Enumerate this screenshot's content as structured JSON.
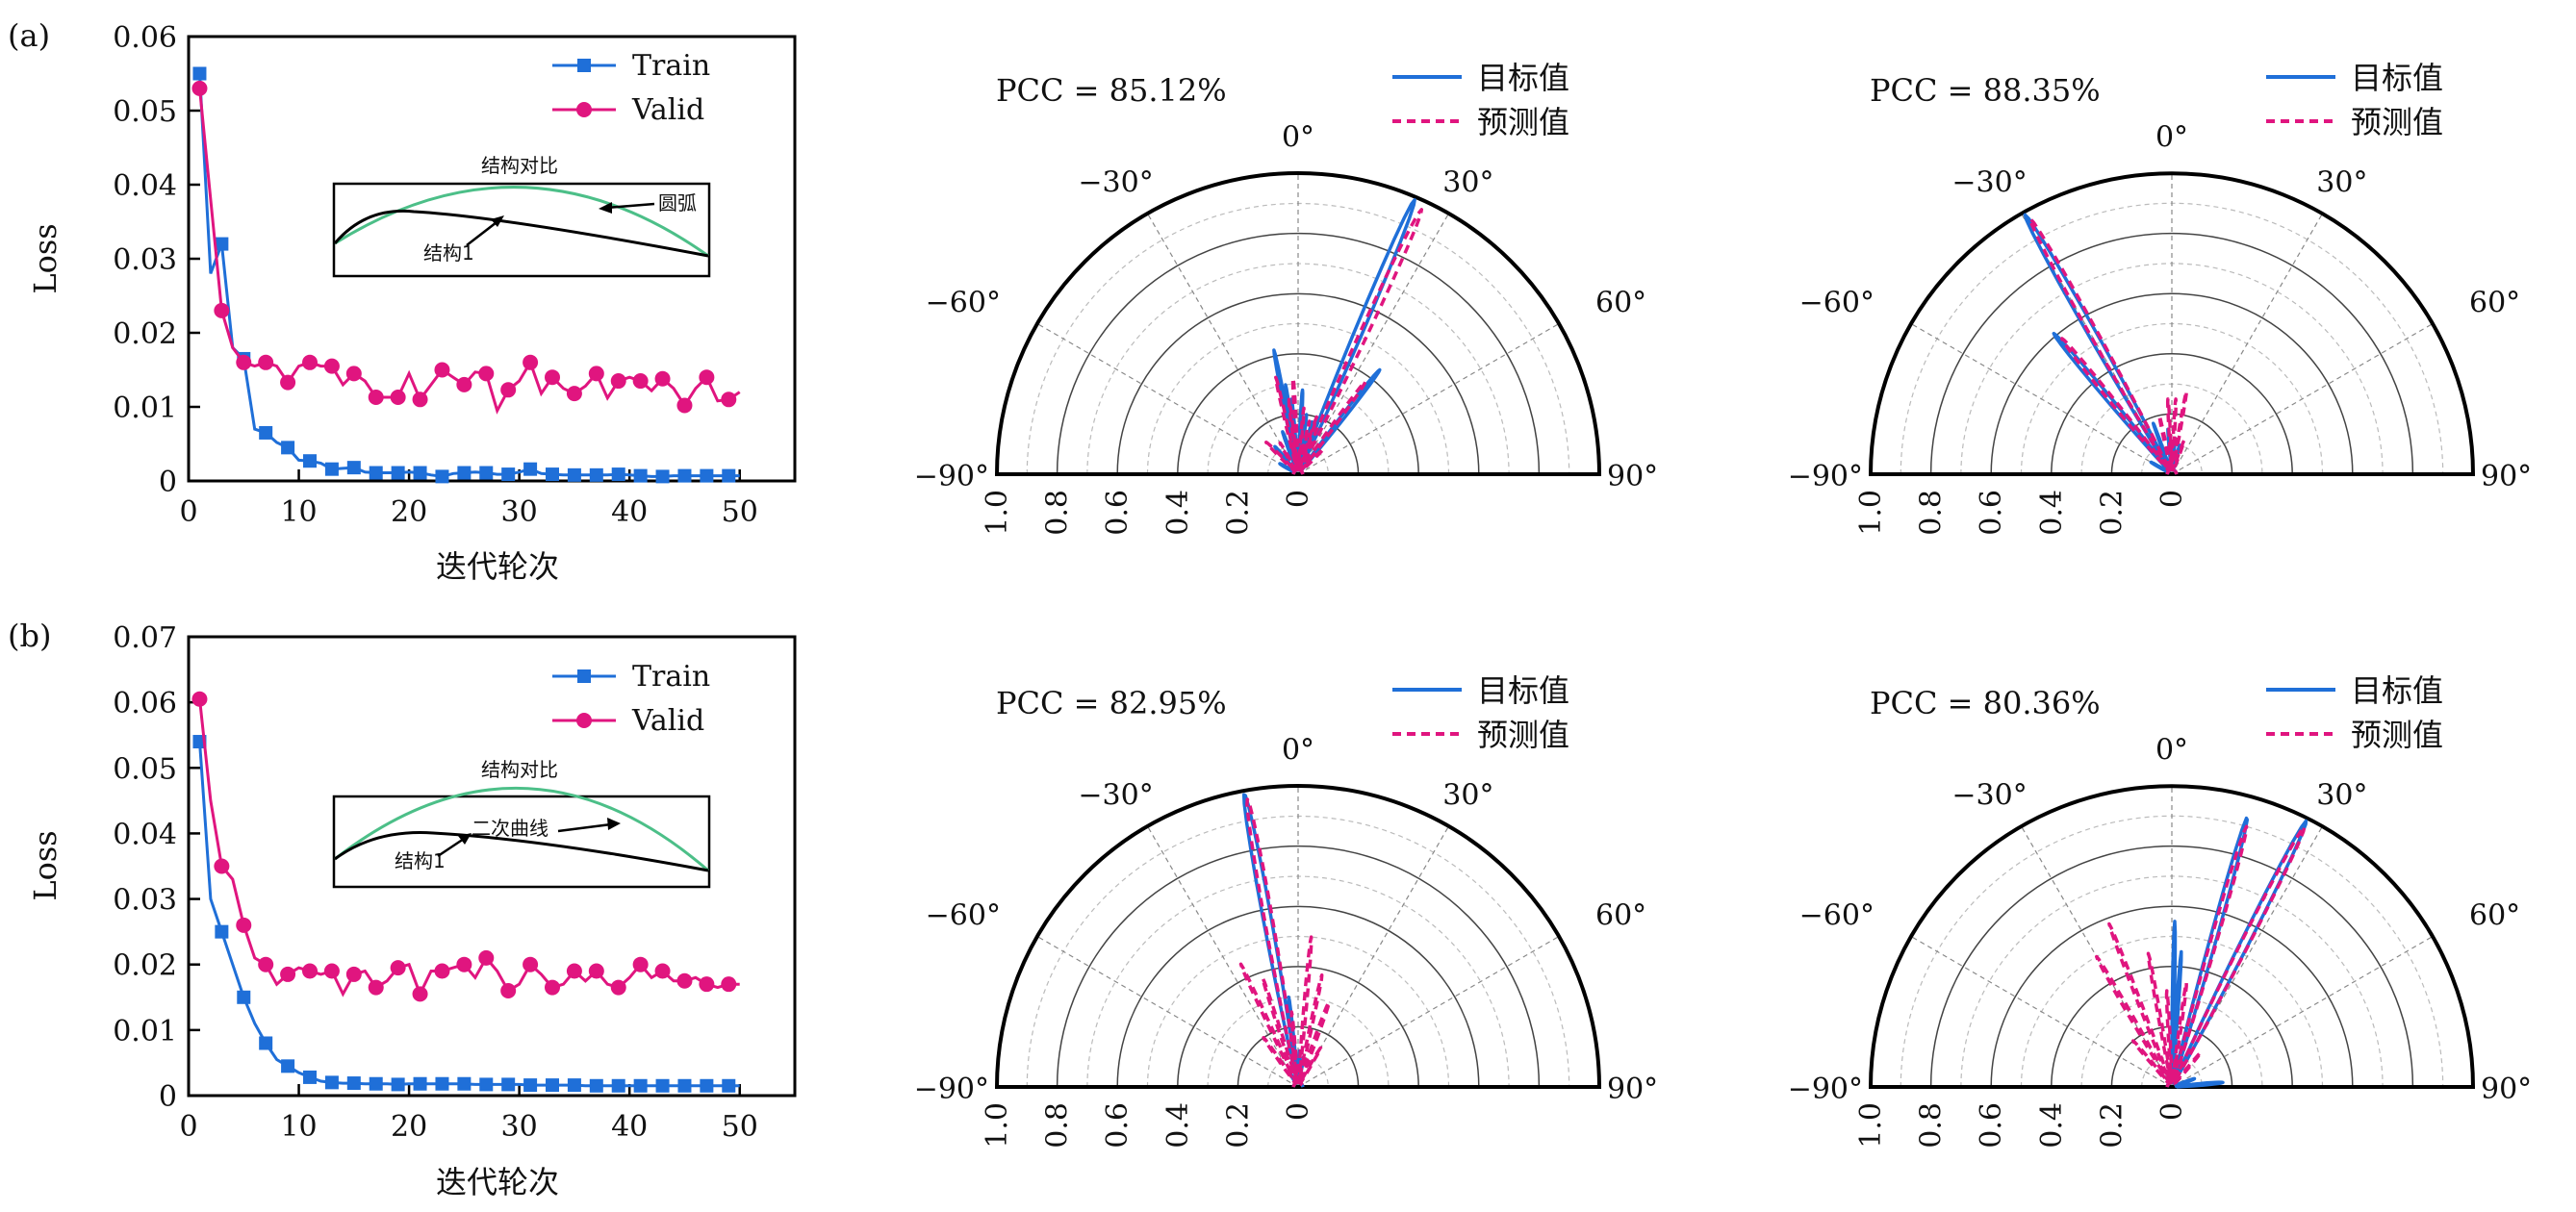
{
  "colors": {
    "train": "#1f6fd8",
    "valid": "#e0157f",
    "target": "#1f6fd8",
    "predicted": "#e0157f",
    "arc": "#4cbf88",
    "structure": "#000000"
  },
  "chart_data": [
    {
      "type": "line",
      "panel_label": "(a)",
      "xlabel": "迭代轮次",
      "ylabel": "Loss",
      "xlim": [
        0,
        55
      ],
      "ylim": [
        0,
        0.06
      ],
      "xticks": [
        0,
        10,
        20,
        30,
        40,
        50
      ],
      "yticks": [
        0,
        0.01,
        0.02,
        0.03,
        0.04,
        0.05,
        0.06
      ],
      "ytick_labels": [
        "0",
        "0.01",
        "0.02",
        "0.03",
        "0.04",
        "0.05",
        "0.06"
      ],
      "legend_position": "top-right",
      "inset": {
        "title": "结构对比",
        "label_1": "结构1",
        "label_2": "圆弧"
      },
      "series": [
        {
          "name": "Train",
          "marker": "square",
          "values": [
            0.055,
            0.028,
            0.032,
            0.018,
            0.0165,
            0.007,
            0.0065,
            0.0052,
            0.0045,
            0.0028,
            0.0027,
            0.0024,
            0.0016,
            0.0017,
            0.0018,
            0.0012,
            0.0011,
            0.0011,
            0.0011,
            0.0012,
            0.0011,
            0.0008,
            0.0006,
            0.001,
            0.0011,
            0.0012,
            0.0011,
            0.0009,
            0.0009,
            0.0012,
            0.0016,
            0.001,
            0.0009,
            0.0008,
            0.0008,
            0.0008,
            0.0008,
            0.0008,
            0.0009,
            0.0008,
            0.0007,
            0.0006,
            0.0006,
            0.0007,
            0.0007,
            0.0007,
            0.0007,
            0.0007,
            0.0007,
            0.0007
          ]
        },
        {
          "name": "Valid",
          "marker": "circle",
          "values": [
            0.053,
            0.038,
            0.023,
            0.018,
            0.016,
            0.0155,
            0.016,
            0.0155,
            0.0133,
            0.0155,
            0.016,
            0.0155,
            0.0155,
            0.013,
            0.0145,
            0.0135,
            0.0113,
            0.0113,
            0.0113,
            0.0145,
            0.011,
            0.013,
            0.015,
            0.014,
            0.013,
            0.0147,
            0.0145,
            0.0095,
            0.0123,
            0.0135,
            0.016,
            0.0118,
            0.014,
            0.0125,
            0.0118,
            0.0128,
            0.0145,
            0.0112,
            0.0135,
            0.014,
            0.0135,
            0.0122,
            0.0138,
            0.0125,
            0.0102,
            0.0125,
            0.014,
            0.0108,
            0.011,
            0.012
          ]
        }
      ]
    },
    {
      "type": "line",
      "panel_label": "(b)",
      "xlabel": "迭代轮次",
      "ylabel": "Loss",
      "xlim": [
        0,
        55
      ],
      "ylim": [
        0,
        0.07
      ],
      "xticks": [
        0,
        10,
        20,
        30,
        40,
        50
      ],
      "yticks": [
        0,
        0.01,
        0.02,
        0.03,
        0.04,
        0.05,
        0.06,
        0.07
      ],
      "ytick_labels": [
        "0",
        "0.01",
        "0.02",
        "0.03",
        "0.04",
        "0.05",
        "0.06",
        "0.07"
      ],
      "legend_position": "top-right",
      "inset": {
        "title": "结构对比",
        "label_1": "结构1",
        "label_2": "二次曲线"
      },
      "series": [
        {
          "name": "Train",
          "marker": "square",
          "values": [
            0.054,
            0.03,
            0.025,
            0.02,
            0.015,
            0.011,
            0.008,
            0.0055,
            0.0045,
            0.0035,
            0.0028,
            0.0022,
            0.002,
            0.0019,
            0.0019,
            0.0018,
            0.0018,
            0.0018,
            0.0017,
            0.0018,
            0.0018,
            0.0018,
            0.0018,
            0.0018,
            0.0018,
            0.0017,
            0.0017,
            0.0017,
            0.0017,
            0.0017,
            0.0016,
            0.0016,
            0.0016,
            0.0016,
            0.0016,
            0.0015,
            0.0015,
            0.0015,
            0.0015,
            0.0015,
            0.0015,
            0.0015,
            0.0015,
            0.0015,
            0.0015,
            0.0015,
            0.0015,
            0.0015,
            0.0015,
            0.0015
          ]
        },
        {
          "name": "Valid",
          "marker": "circle",
          "values": [
            0.0605,
            0.045,
            0.035,
            0.033,
            0.026,
            0.021,
            0.02,
            0.017,
            0.0185,
            0.0195,
            0.019,
            0.0185,
            0.019,
            0.0155,
            0.0185,
            0.019,
            0.0165,
            0.0175,
            0.0195,
            0.02,
            0.0155,
            0.019,
            0.019,
            0.0195,
            0.02,
            0.018,
            0.021,
            0.019,
            0.016,
            0.017,
            0.02,
            0.0185,
            0.0165,
            0.017,
            0.019,
            0.0175,
            0.019,
            0.017,
            0.0165,
            0.018,
            0.02,
            0.018,
            0.019,
            0.0175,
            0.0175,
            0.018,
            0.017,
            0.0165,
            0.017,
            0.017
          ]
        }
      ]
    },
    {
      "type": "polar",
      "pcc": "PCC = 85.12%",
      "angle_labels": [
        "−90°",
        "−60°",
        "−30°",
        "0°",
        "30°",
        "60°",
        "90°"
      ],
      "angles": [
        -90,
        -60,
        -30,
        0,
        30,
        60,
        90
      ],
      "radial_labels": [
        "1.0",
        "0.8",
        "0.6",
        "0.4",
        "0.2",
        "0"
      ],
      "rlim": [
        0,
        1
      ],
      "series": [
        {
          "name": "目标值",
          "style": "solid",
          "lobes_angle_mag_width": [
            [
              23,
              0.99,
              3
            ],
            [
              38,
              0.44,
              3
            ],
            [
              -11,
              0.42,
              2
            ],
            [
              -8,
              0.3,
              2
            ],
            [
              -5,
              0.25,
              2
            ],
            [
              3,
              0.28,
              2
            ],
            [
              8,
              0.2,
              2
            ],
            [
              -20,
              0.15,
              3
            ],
            [
              15,
              0.18,
              2
            ],
            [
              -40,
              0.12,
              4
            ],
            [
              -60,
              0.07,
              5
            ]
          ]
        },
        {
          "name": "预测值",
          "style": "dashed",
          "lobes_angle_mag_width": [
            [
              25,
              0.97,
              3
            ],
            [
              36,
              0.38,
              3
            ],
            [
              -13,
              0.33,
              2
            ],
            [
              -3,
              0.32,
              2
            ],
            [
              -7,
              0.25,
              2
            ],
            [
              5,
              0.22,
              2
            ],
            [
              12,
              0.18,
              2
            ],
            [
              18,
              0.2,
              2
            ],
            [
              -30,
              0.12,
              3
            ],
            [
              -45,
              0.15,
              4
            ],
            [
              45,
              0.12,
              3
            ]
          ]
        }
      ]
    },
    {
      "type": "polar",
      "pcc": "PCC = 88.35%",
      "angle_labels": [
        "−90°",
        "−60°",
        "−30°",
        "0°",
        "30°",
        "60°",
        "90°"
      ],
      "angles": [
        -90,
        -60,
        -30,
        0,
        30,
        60,
        90
      ],
      "radial_labels": [
        "1.0",
        "0.8",
        "0.6",
        "0.4",
        "0.2",
        "0"
      ],
      "rlim": [
        0,
        1
      ],
      "series": [
        {
          "name": "目标值",
          "style": "solid",
          "lobes_angle_mag_width": [
            [
              -29.5,
              0.99,
              3
            ],
            [
              -40,
              0.61,
              3
            ],
            [
              -20,
              0.18,
              2
            ],
            [
              -5,
              0.15,
              2
            ],
            [
              5,
              0.12,
              2
            ],
            [
              15,
              0.1,
              3
            ],
            [
              -60,
              0.08,
              4
            ]
          ]
        },
        {
          "name": "预测值",
          "style": "dashed",
          "lobes_angle_mag_width": [
            [
              -29,
              0.97,
              3
            ],
            [
              -39,
              0.58,
              3
            ],
            [
              -3,
              0.25,
              2
            ],
            [
              3,
              0.25,
              2
            ],
            [
              10,
              0.28,
              2
            ],
            [
              -12,
              0.2,
              2
            ],
            [
              20,
              0.12,
              3
            ]
          ]
        }
      ]
    },
    {
      "type": "polar",
      "pcc": "PCC = 82.95%",
      "angle_labels": [
        "−90°",
        "−60°",
        "−30°",
        "0°",
        "30°",
        "60°",
        "90°"
      ],
      "angles": [
        -90,
        -60,
        -30,
        0,
        30,
        60,
        90
      ],
      "radial_labels": [
        "1.0",
        "0.8",
        "0.6",
        "0.4",
        "0.2",
        "0"
      ],
      "rlim": [
        0,
        1
      ],
      "series": [
        {
          "name": "目标值",
          "style": "solid",
          "lobes_angle_mag_width": [
            [
              -10.4,
              0.99,
              3
            ],
            [
              -6,
              0.3,
              2
            ],
            [
              2,
              0.12,
              2
            ],
            [
              10,
              0.1,
              3
            ],
            [
              -30,
              0.06,
              4
            ]
          ]
        },
        {
          "name": "预测值",
          "style": "dashed",
          "lobes_angle_mag_width": [
            [
              -10,
              0.97,
              3
            ],
            [
              -25,
              0.45,
              2
            ],
            [
              -18,
              0.38,
              2
            ],
            [
              5,
              0.5,
              2
            ],
            [
              12,
              0.38,
              2
            ],
            [
              20,
              0.3,
              3
            ],
            [
              -35,
              0.2,
              3
            ],
            [
              -5,
              0.25,
              2
            ],
            [
              30,
              0.15,
              3
            ]
          ]
        }
      ]
    },
    {
      "type": "polar",
      "pcc": "PCC = 80.36%",
      "angle_labels": [
        "−90°",
        "−60°",
        "−30°",
        "0°",
        "30°",
        "60°",
        "90°"
      ],
      "angles": [
        -90,
        -60,
        -30,
        0,
        30,
        60,
        90
      ],
      "radial_labels": [
        "1.0",
        "0.8",
        "0.6",
        "0.4",
        "0.2",
        "0"
      ],
      "rlim": [
        0,
        1
      ],
      "series": [
        {
          "name": "目标值",
          "style": "solid",
          "lobes_angle_mag_width": [
            [
              15.6,
              0.93,
              2.5
            ],
            [
              26.8,
              0.99,
              3
            ],
            [
              1,
              0.55,
              1.5
            ],
            [
              4,
              0.45,
              1.5
            ],
            [
              85,
              0.17,
              4
            ],
            [
              70,
              0.08,
              5
            ]
          ]
        },
        {
          "name": "预测值",
          "style": "dashed",
          "lobes_angle_mag_width": [
            [
              16,
              0.9,
              2.5
            ],
            [
              27,
              0.97,
              3
            ],
            [
              -30,
              0.5,
              2.5
            ],
            [
              -21,
              0.58,
              2
            ],
            [
              -10,
              0.45,
              2
            ],
            [
              -3,
              0.32,
              2
            ],
            [
              8,
              0.35,
              2
            ],
            [
              -40,
              0.2,
              3
            ],
            [
              40,
              0.15,
              3
            ]
          ]
        }
      ]
    }
  ]
}
